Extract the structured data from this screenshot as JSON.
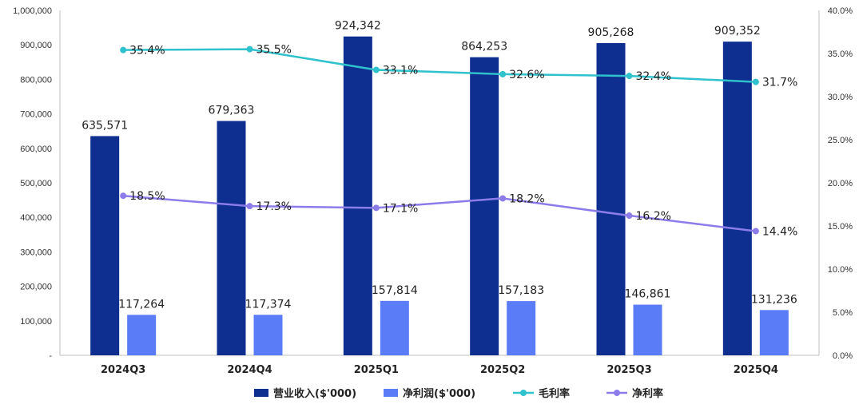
{
  "chart_data": {
    "type": "bar",
    "categories": [
      "2024Q3",
      "2024Q4",
      "2025Q1",
      "2025Q2",
      "2025Q3",
      "2025Q4"
    ],
    "series": [
      {
        "name": "营业收入($'000)",
        "type": "bar",
        "axis": "left",
        "color": "#0E2F8F",
        "values": [
          635571,
          679363,
          924342,
          864253,
          905268,
          909352
        ],
        "labels": [
          "635,571",
          "679,363",
          "924,342",
          "864,253",
          "905,268",
          "909,352"
        ]
      },
      {
        "name": "净利润($'000)",
        "type": "bar",
        "axis": "left",
        "color": "#5B7CF7",
        "values": [
          117264,
          117374,
          157814,
          157183,
          146861,
          131236
        ],
        "labels": [
          "117,264",
          "117,374",
          "157,814",
          "157,183",
          "146,861",
          "131,236"
        ]
      },
      {
        "name": "毛利率",
        "type": "line",
        "axis": "right",
        "color": "#2FC1CC",
        "values": [
          35.4,
          35.5,
          33.1,
          32.6,
          32.4,
          31.7
        ],
        "labels": [
          "35.4%",
          "35.5%",
          "33.1%",
          "32.6%",
          "32.4%",
          "31.7%"
        ]
      },
      {
        "name": "净利率",
        "type": "line",
        "axis": "right",
        "color": "#8B7CEA",
        "values": [
          18.5,
          17.3,
          17.1,
          18.2,
          16.2,
          14.4
        ],
        "labels": [
          "18.5%",
          "17.3%",
          "17.1%",
          "18.2%",
          "16.2%",
          "14.4%"
        ]
      }
    ],
    "y_left": {
      "ylim": [
        0,
        1000000
      ],
      "ticks": [
        0,
        100000,
        200000,
        300000,
        400000,
        500000,
        600000,
        700000,
        800000,
        900000,
        1000000
      ],
      "tick_labels": [
        "-",
        "100,000",
        "200,000",
        "300,000",
        "400,000",
        "500,000",
        "600,000",
        "700,000",
        "800,000",
        "900,000",
        "1,000,000"
      ]
    },
    "y_right": {
      "ylim": [
        0,
        40
      ],
      "ticks": [
        0,
        5,
        10,
        15,
        20,
        25,
        30,
        35,
        40
      ],
      "tick_labels": [
        "0.0%",
        "5.0%",
        "10.0%",
        "15.0%",
        "20.0%",
        "25.0%",
        "30.0%",
        "35.0%",
        "40.0%"
      ]
    },
    "grid": false,
    "legend_position": "bottom"
  }
}
